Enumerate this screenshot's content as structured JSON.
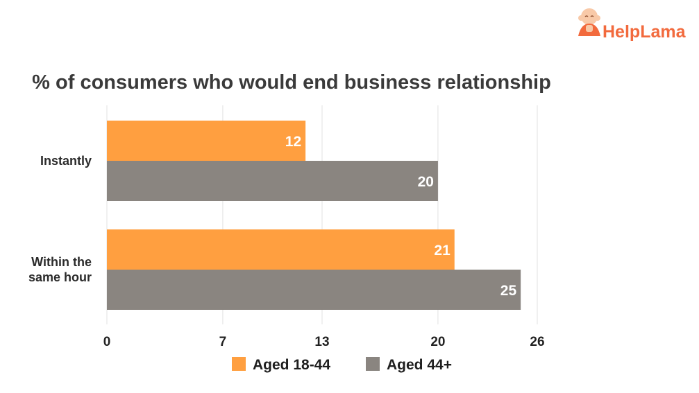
{
  "brand": {
    "name_part1": "Help",
    "name_part2": "Lama",
    "icon": "monk-mascot-icon",
    "color": "#f26a3d"
  },
  "chart_data": {
    "type": "bar",
    "orientation": "horizontal",
    "title": "% of consumers who would end business relationship",
    "categories": [
      "Instantly",
      "Within the same hour"
    ],
    "category_label_lines": [
      [
        "Instantly"
      ],
      [
        "Within the",
        "same hour"
      ]
    ],
    "series": [
      {
        "name": "Aged 18-44",
        "values": [
          12,
          21
        ],
        "color": "#ff9f40"
      },
      {
        "name": "Aged 44+",
        "values": [
          20,
          25
        ],
        "color": "#8a8580"
      }
    ],
    "xlim": [
      0,
      26
    ],
    "x_ticks": [
      "0",
      "7",
      "13",
      "20",
      "26"
    ],
    "grid": true,
    "legend_position": "bottom"
  }
}
